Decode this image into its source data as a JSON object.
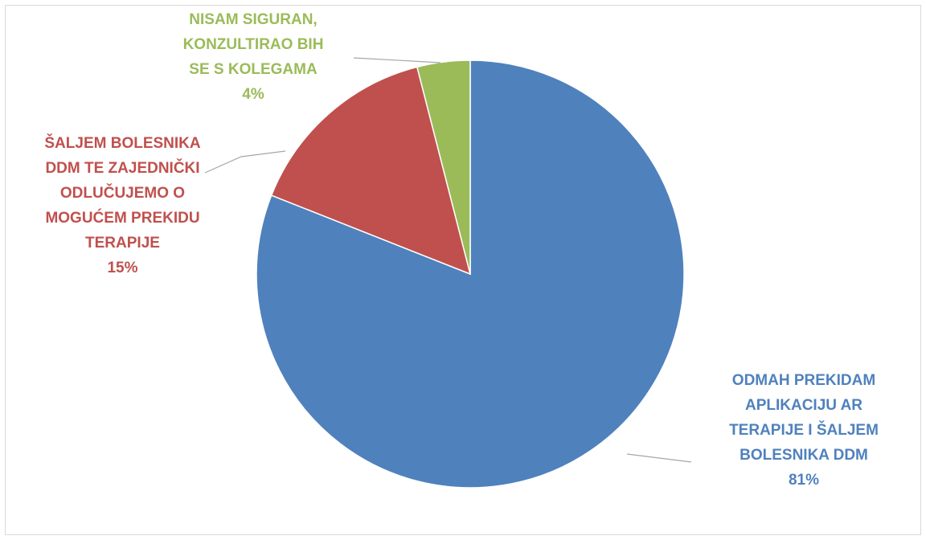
{
  "chart_data": {
    "type": "pie",
    "categories": [
      "ODMAH PREKIDAM APLIKACIJU AR TERAPIJE I ŠALJEM BOLESNIKA DDM",
      "ŠALJEM BOLESNIKA DDM TE ZAJEDNIČKI ODLUČUJEMO O MOGUĆEM PREKIDU TERAPIJE",
      "NISAM SIGURAN, KONZULTIRAO BIH SE S KOLEGAMA"
    ],
    "values": [
      81,
      15,
      4
    ],
    "value_labels": [
      "81%",
      "15%",
      "4%"
    ],
    "colors": [
      "#4f81bd",
      "#c0504d",
      "#9bbb59"
    ]
  }
}
